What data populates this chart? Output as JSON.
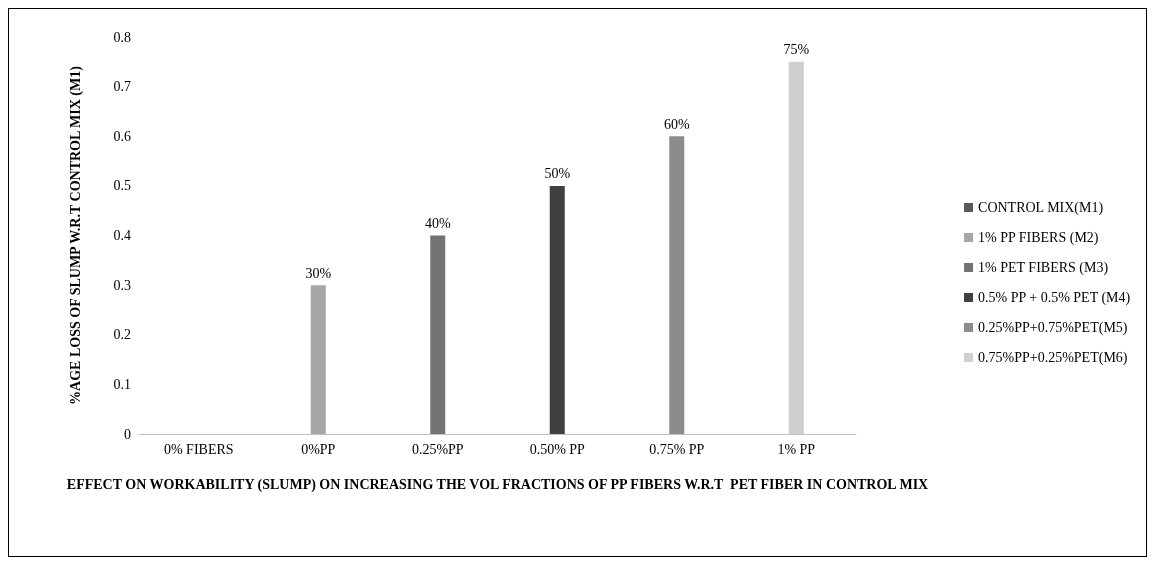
{
  "chart_data": {
    "type": "bar",
    "categories": [
      "0% FIBERS",
      "0%PP",
      "0.25%PP",
      "0.50% PP",
      "0.75% PP",
      "1% PP"
    ],
    "xlabel": "EFFECT ON WORKABILITY (SLUMP) ON INCREASING THE VOL FRACTIONS OF PP FIBERS W.R.T  PET FIBER IN CONTROL MIX",
    "ylabel": "%AGE LOSS OF SLUMP W.R.T CONTROL MIX (M1)",
    "ylim": [
      0,
      0.8
    ],
    "yticks": [
      0,
      0.1,
      0.2,
      0.3,
      0.4,
      0.5,
      0.6,
      0.7,
      0.8
    ],
    "legend": "right",
    "series": [
      {
        "name": "CONTROL MIX(M1)",
        "color": "#595959",
        "values": [
          0,
          null,
          null,
          null,
          null,
          null
        ],
        "value_labels": [
          null,
          null,
          null,
          null,
          null,
          null
        ]
      },
      {
        "name": "1% PP FIBERS (M2)",
        "color": "#a6a6a6",
        "values": [
          null,
          0.3,
          null,
          null,
          null,
          null
        ],
        "value_labels": [
          null,
          "30%",
          null,
          null,
          null,
          null
        ]
      },
      {
        "name": "1% PET FIBERS (M3)",
        "color": "#737373",
        "values": [
          null,
          null,
          0.4,
          null,
          null,
          null
        ],
        "value_labels": [
          null,
          null,
          "40%",
          null,
          null,
          null
        ]
      },
      {
        "name": "0.5% PP + 0.5% PET (M4)",
        "color": "#404040",
        "values": [
          null,
          null,
          null,
          0.5,
          null,
          null
        ],
        "value_labels": [
          null,
          null,
          null,
          "50%",
          null,
          null
        ]
      },
      {
        "name": "0.25%PP+0.75%PET(M5)",
        "color": "#8c8c8c",
        "values": [
          null,
          null,
          null,
          null,
          0.6,
          null
        ],
        "value_labels": [
          null,
          null,
          null,
          null,
          "60%",
          null
        ]
      },
      {
        "name": "0.75%PP+0.25%PET(M6)",
        "color": "#cfcfcf",
        "values": [
          null,
          null,
          null,
          null,
          null,
          0.75
        ],
        "value_labels": [
          null,
          null,
          null,
          null,
          null,
          "75%"
        ]
      }
    ]
  }
}
